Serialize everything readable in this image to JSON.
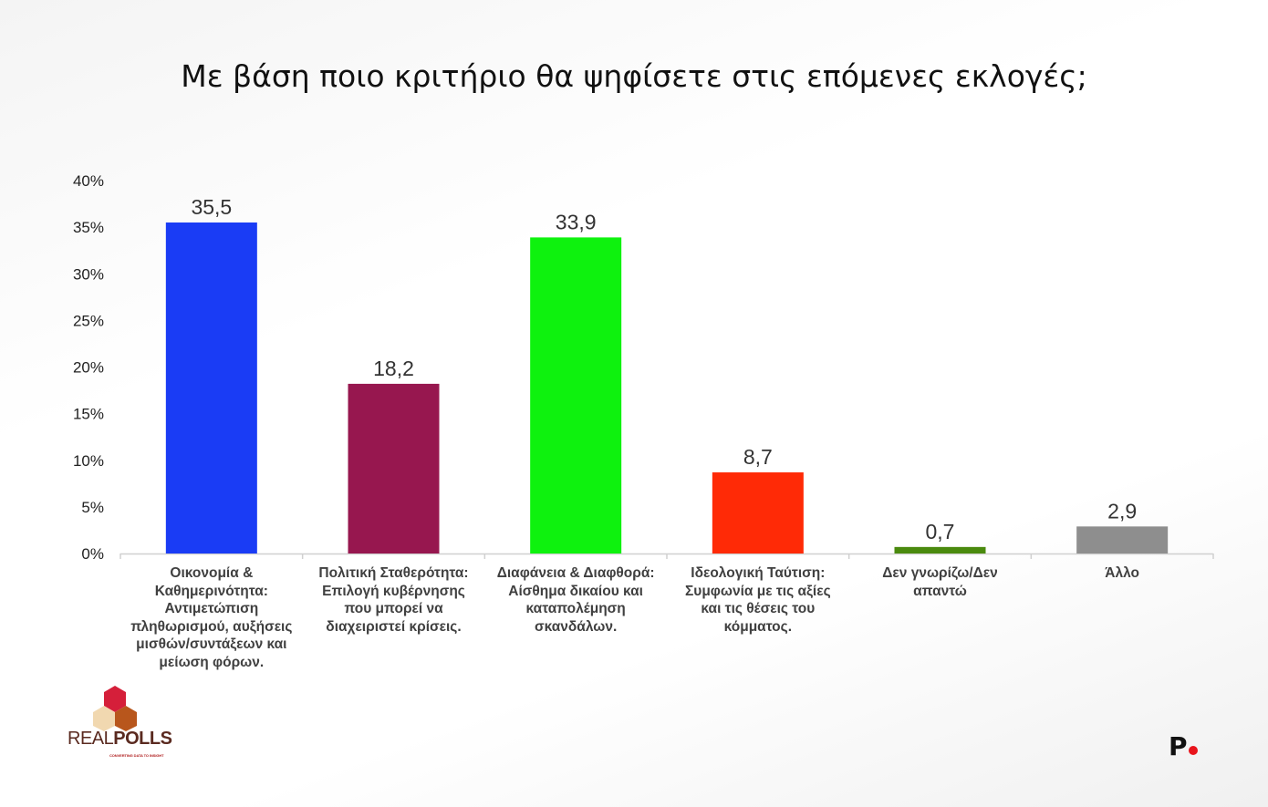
{
  "chart_data": {
    "type": "bar",
    "title": "Με βάση ποιο κριτήριο θα ψηφίσετε στις επόμενες εκλογές;",
    "categories": [
      "Οικονομία &\nΚαθημερινότητα:\nΑντιμετώπιση\nπληθωρισμού, αυξήσεις\nμισθών/συντάξεων και\nμείωση φόρων.",
      "Πολιτική Σταθερότητα:\nΕπιλογή κυβέρνησης\nπου μπορεί να\nδιαχειριστεί κρίσεις.",
      "Διαφάνεια & Διαφθορά:\nΑίσθημα δικαίου και\nκαταπολέμηση\nσκανδάλων.",
      "Ιδεολογική Ταύτιση:\nΣυμφωνία με τις αξίες\nκαι τις θέσεις του\nκόμματος.",
      "Δεν γνωρίζω/Δεν\nαπαντώ",
      "Άλλο"
    ],
    "values": [
      35.5,
      18.2,
      33.9,
      8.7,
      0.7,
      2.9
    ],
    "data_labels": [
      "35,5",
      "18,2",
      "33,9",
      "8,7",
      "0,7",
      "2,9"
    ],
    "colors": [
      "#1a3cf5",
      "#97174f",
      "#0ef20e",
      "#ff2a06",
      "#4a8a0e",
      "#8e8e8e"
    ],
    "ylim": [
      0,
      40
    ],
    "yticks": [
      "0%",
      "5%",
      "10%",
      "15%",
      "20%",
      "25%",
      "30%",
      "35%",
      "40%"
    ],
    "grid": false,
    "xlabel": "",
    "ylabel": ""
  },
  "logos": {
    "realpolls": "REALPOLLS",
    "realpolls_tagline": "CONVERTING DATA TO INSIGHT",
    "publisher": "P."
  }
}
